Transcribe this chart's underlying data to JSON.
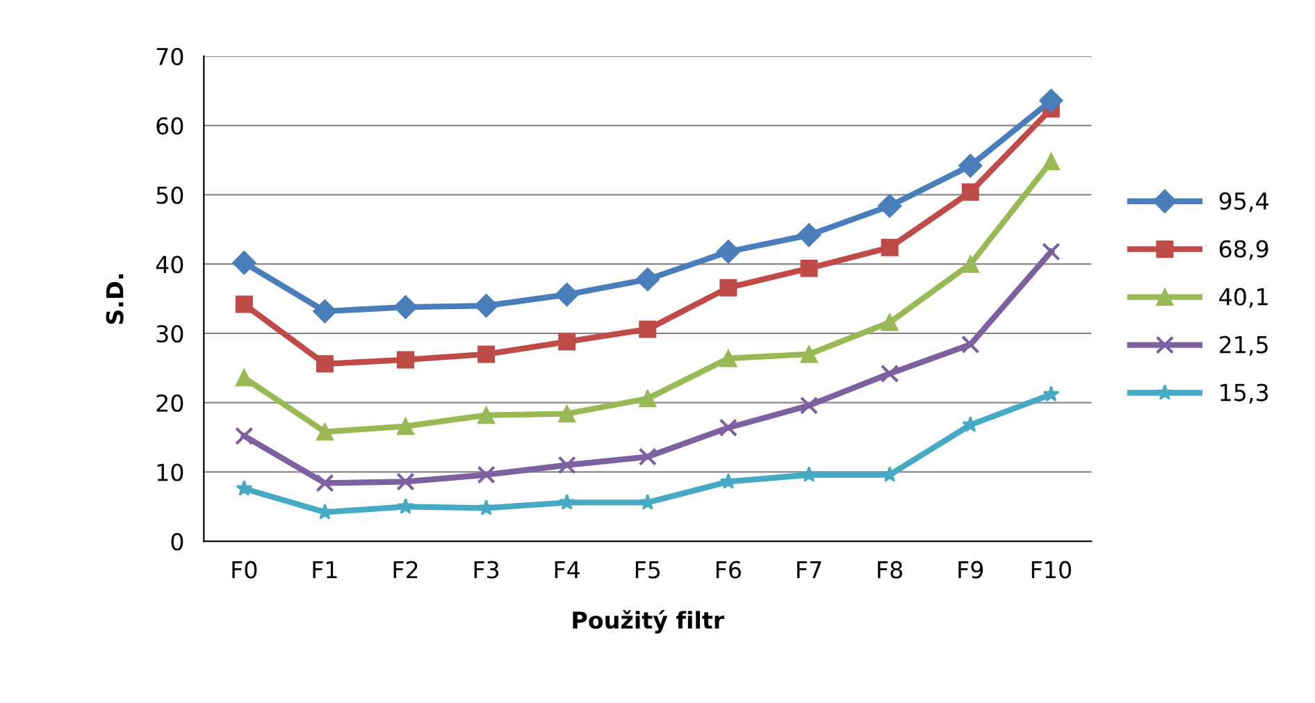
{
  "chart_data": {
    "type": "line",
    "xlabel": "Použitý filtr",
    "ylabel": "S.D.",
    "categories": [
      "F0",
      "F1",
      "F2",
      "F3",
      "F4",
      "F5",
      "F6",
      "F7",
      "F8",
      "F9",
      "F10"
    ],
    "series": [
      {
        "name": "95,4",
        "color": "#4a7ebb",
        "marker": "diamond",
        "values": [
          40.2,
          33.2,
          33.8,
          34,
          35.6,
          37.8,
          41.8,
          44.2,
          48.4,
          54.2,
          63.6
        ]
      },
      {
        "name": "68,9",
        "color": "#be4b48",
        "marker": "square",
        "values": [
          34.2,
          25.6,
          26.2,
          27,
          28.8,
          30.6,
          36.6,
          39.4,
          42.4,
          50.4,
          62.4
        ]
      },
      {
        "name": "40,1",
        "color": "#98b954",
        "marker": "triangle",
        "values": [
          23.6,
          15.8,
          16.6,
          18.2,
          18.4,
          20.6,
          26.4,
          27,
          31.6,
          40,
          54.8
        ]
      },
      {
        "name": "21,5",
        "color": "#7d60a0",
        "marker": "cross",
        "values": [
          15.2,
          8.4,
          8.6,
          9.6,
          11,
          12.2,
          16.4,
          19.6,
          24.2,
          28.4,
          41.8
        ]
      },
      {
        "name": "15,3",
        "color": "#46aac5",
        "marker": "star",
        "values": [
          7.6,
          4.2,
          5,
          4.8,
          5.6,
          5.6,
          8.6,
          9.6,
          9.6,
          16.8,
          21.2
        ]
      }
    ],
    "ylim": [
      0,
      70
    ],
    "yticks": [
      0,
      10,
      20,
      30,
      40,
      50,
      60,
      70
    ],
    "grid": "y",
    "legend": "right",
    "line_style": "solid"
  }
}
